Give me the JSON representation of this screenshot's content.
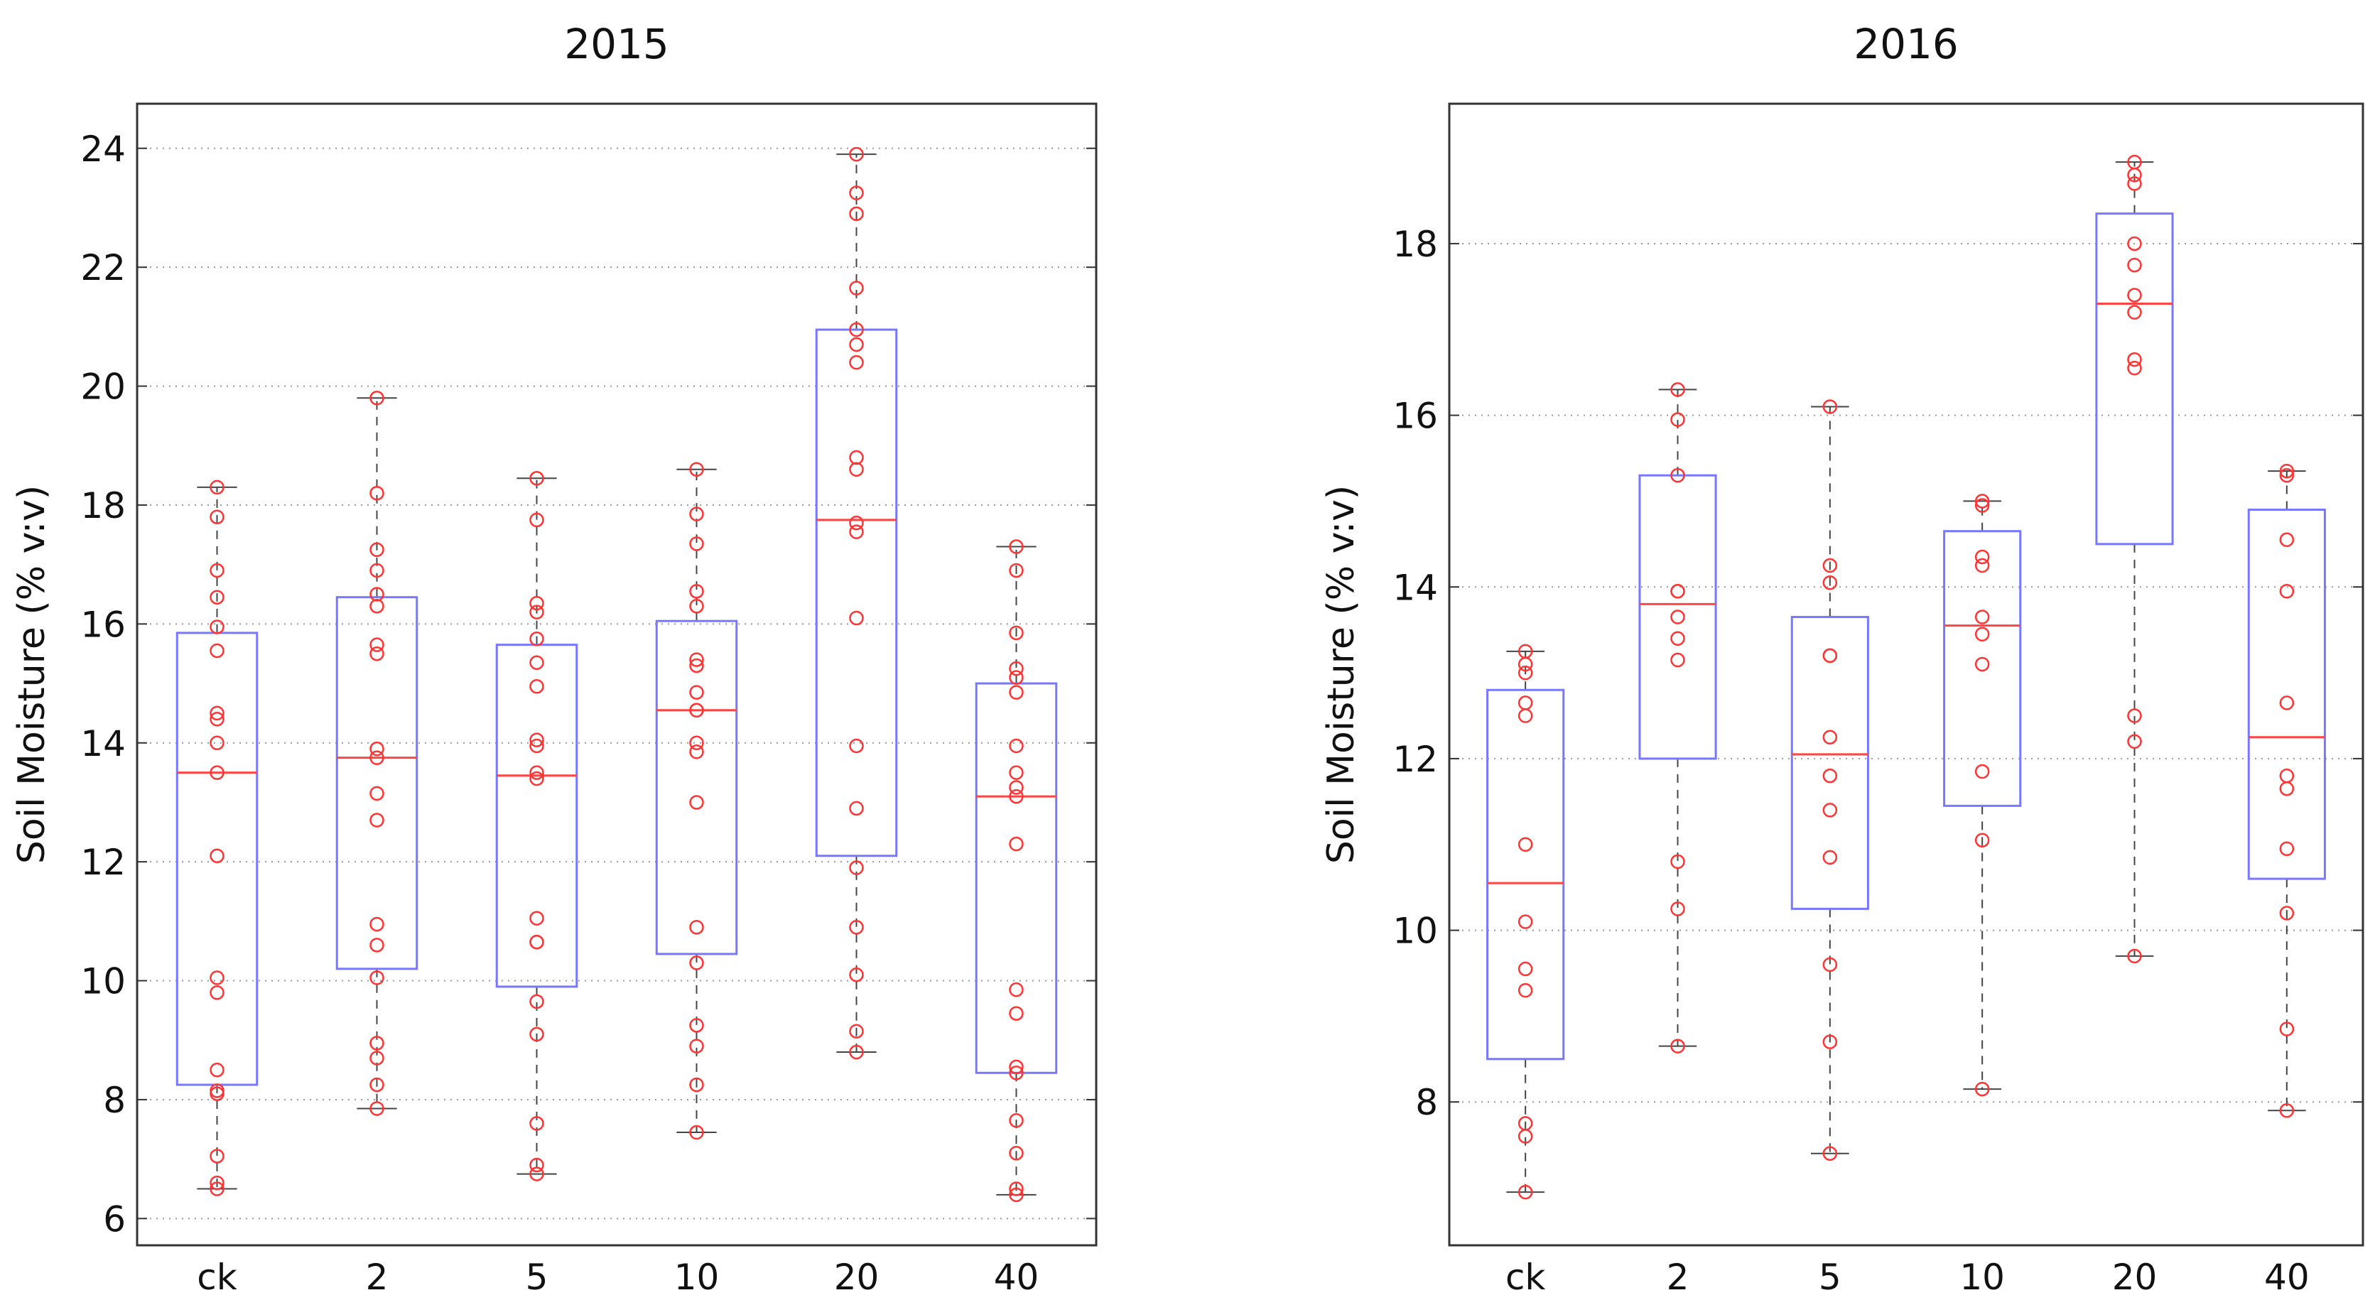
{
  "chart_data": [
    {
      "type": "box",
      "title": "2015",
      "xlabel": "",
      "ylabel": "Soil Moisture (% v:v)",
      "ylim": [
        5.55,
        24.75
      ],
      "yticks": [
        6,
        8,
        10,
        12,
        14,
        16,
        18,
        20,
        22,
        24
      ],
      "grid": "horizontal dotted",
      "categories": [
        "ck",
        "2",
        "5",
        "10",
        "20",
        "40"
      ],
      "boxes": [
        {
          "q1": 8.25,
          "median": 13.5,
          "q3": 15.85,
          "whisker_low": 6.5,
          "whisker_high": 18.3,
          "points": [
            18.3,
            17.8,
            16.9,
            16.45,
            15.95,
            15.55,
            14.5,
            14.4,
            14.0,
            13.5,
            12.1,
            10.05,
            9.8,
            8.5,
            8.15,
            8.1,
            7.05,
            6.6,
            6.5
          ]
        },
        {
          "q1": 10.2,
          "median": 13.75,
          "q3": 16.45,
          "whisker_low": 7.85,
          "whisker_high": 19.8,
          "points": [
            19.8,
            18.2,
            17.25,
            16.9,
            16.5,
            16.3,
            15.65,
            15.5,
            13.9,
            13.75,
            13.15,
            12.7,
            10.95,
            10.6,
            10.05,
            8.95,
            8.7,
            8.25,
            7.85
          ]
        },
        {
          "q1": 9.9,
          "median": 13.45,
          "q3": 15.65,
          "whisker_low": 6.75,
          "whisker_high": 18.45,
          "points": [
            18.45,
            17.75,
            16.35,
            16.2,
            15.75,
            15.35,
            14.95,
            14.05,
            13.95,
            13.5,
            13.4,
            11.05,
            10.65,
            10.65,
            9.65,
            9.1,
            7.6,
            6.9,
            6.75
          ]
        },
        {
          "q1": 10.45,
          "median": 14.55,
          "q3": 16.05,
          "whisker_low": 7.45,
          "whisker_high": 18.6,
          "points": [
            18.6,
            17.85,
            17.35,
            16.55,
            16.3,
            15.4,
            15.3,
            14.85,
            14.55,
            14.55,
            14.0,
            13.85,
            13.0,
            10.9,
            10.3,
            9.25,
            8.9,
            8.25,
            7.45
          ]
        },
        {
          "q1": 12.1,
          "median": 17.75,
          "q3": 20.95,
          "whisker_low": 8.8,
          "whisker_high": 23.9,
          "points": [
            23.9,
            23.25,
            22.9,
            21.65,
            20.95,
            20.7,
            20.4,
            18.8,
            18.6,
            17.7,
            17.55,
            16.1,
            13.95,
            12.9,
            11.9,
            10.9,
            10.1,
            9.15,
            8.8
          ]
        },
        {
          "q1": 8.45,
          "median": 13.1,
          "q3": 15.0,
          "whisker_low": 6.4,
          "whisker_high": 17.3,
          "points": [
            17.3,
            16.9,
            15.85,
            15.25,
            15.1,
            14.85,
            13.95,
            13.5,
            13.25,
            13.1,
            12.3,
            9.85,
            9.45,
            8.55,
            8.45,
            7.65,
            7.1,
            6.5,
            6.4
          ]
        }
      ]
    },
    {
      "type": "box",
      "title": "2016",
      "xlabel": "",
      "ylabel": "Soil Moisture (% v:v)",
      "ylim": [
        6.33,
        19.63
      ],
      "yticks": [
        8,
        10,
        12,
        14,
        16,
        18
      ],
      "grid": "horizontal dotted",
      "categories": [
        "ck",
        "2",
        "5",
        "10",
        "20",
        "40"
      ],
      "boxes": [
        {
          "q1": 8.5,
          "median": 10.55,
          "q3": 12.8,
          "whisker_low": 6.95,
          "whisker_high": 13.25,
          "points": [
            13.25,
            13.1,
            13.0,
            12.65,
            12.5,
            11.0,
            10.1,
            9.55,
            9.3,
            7.75,
            7.6,
            6.95
          ]
        },
        {
          "q1": 12.0,
          "median": 13.8,
          "q3": 15.3,
          "whisker_low": 8.65,
          "whisker_high": 16.3,
          "points": [
            16.3,
            15.95,
            15.3,
            13.95,
            13.95,
            13.65,
            13.4,
            13.15,
            10.8,
            10.25,
            8.65
          ]
        },
        {
          "q1": 10.25,
          "median": 12.05,
          "q3": 13.65,
          "whisker_low": 7.4,
          "whisker_high": 16.1,
          "points": [
            16.1,
            14.25,
            14.05,
            13.2,
            13.2,
            12.25,
            11.8,
            11.4,
            10.85,
            9.6,
            8.7,
            7.4
          ]
        },
        {
          "q1": 11.45,
          "median": 13.55,
          "q3": 14.65,
          "whisker_low": 8.15,
          "whisker_high": 15.0,
          "points": [
            15.0,
            14.95,
            14.35,
            14.25,
            13.65,
            13.45,
            13.1,
            11.85,
            11.05,
            8.15
          ]
        },
        {
          "q1": 14.5,
          "median": 17.3,
          "q3": 18.35,
          "whisker_low": 9.7,
          "whisker_high": 18.95,
          "points": [
            18.95,
            18.8,
            18.7,
            18.0,
            17.75,
            17.4,
            17.2,
            16.65,
            16.55,
            12.5,
            12.2,
            9.7
          ]
        },
        {
          "q1": 10.6,
          "median": 12.25,
          "q3": 14.9,
          "whisker_low": 7.9,
          "whisker_high": 15.35,
          "points": [
            15.35,
            15.3,
            14.55,
            13.95,
            12.65,
            11.8,
            11.65,
            10.95,
            10.2,
            8.85,
            7.9
          ]
        }
      ]
    }
  ],
  "colors": {
    "box": "#7777ff",
    "median": "#ff4444",
    "points": "#ff3333",
    "whisker": "#444444",
    "grid": "#999999"
  }
}
